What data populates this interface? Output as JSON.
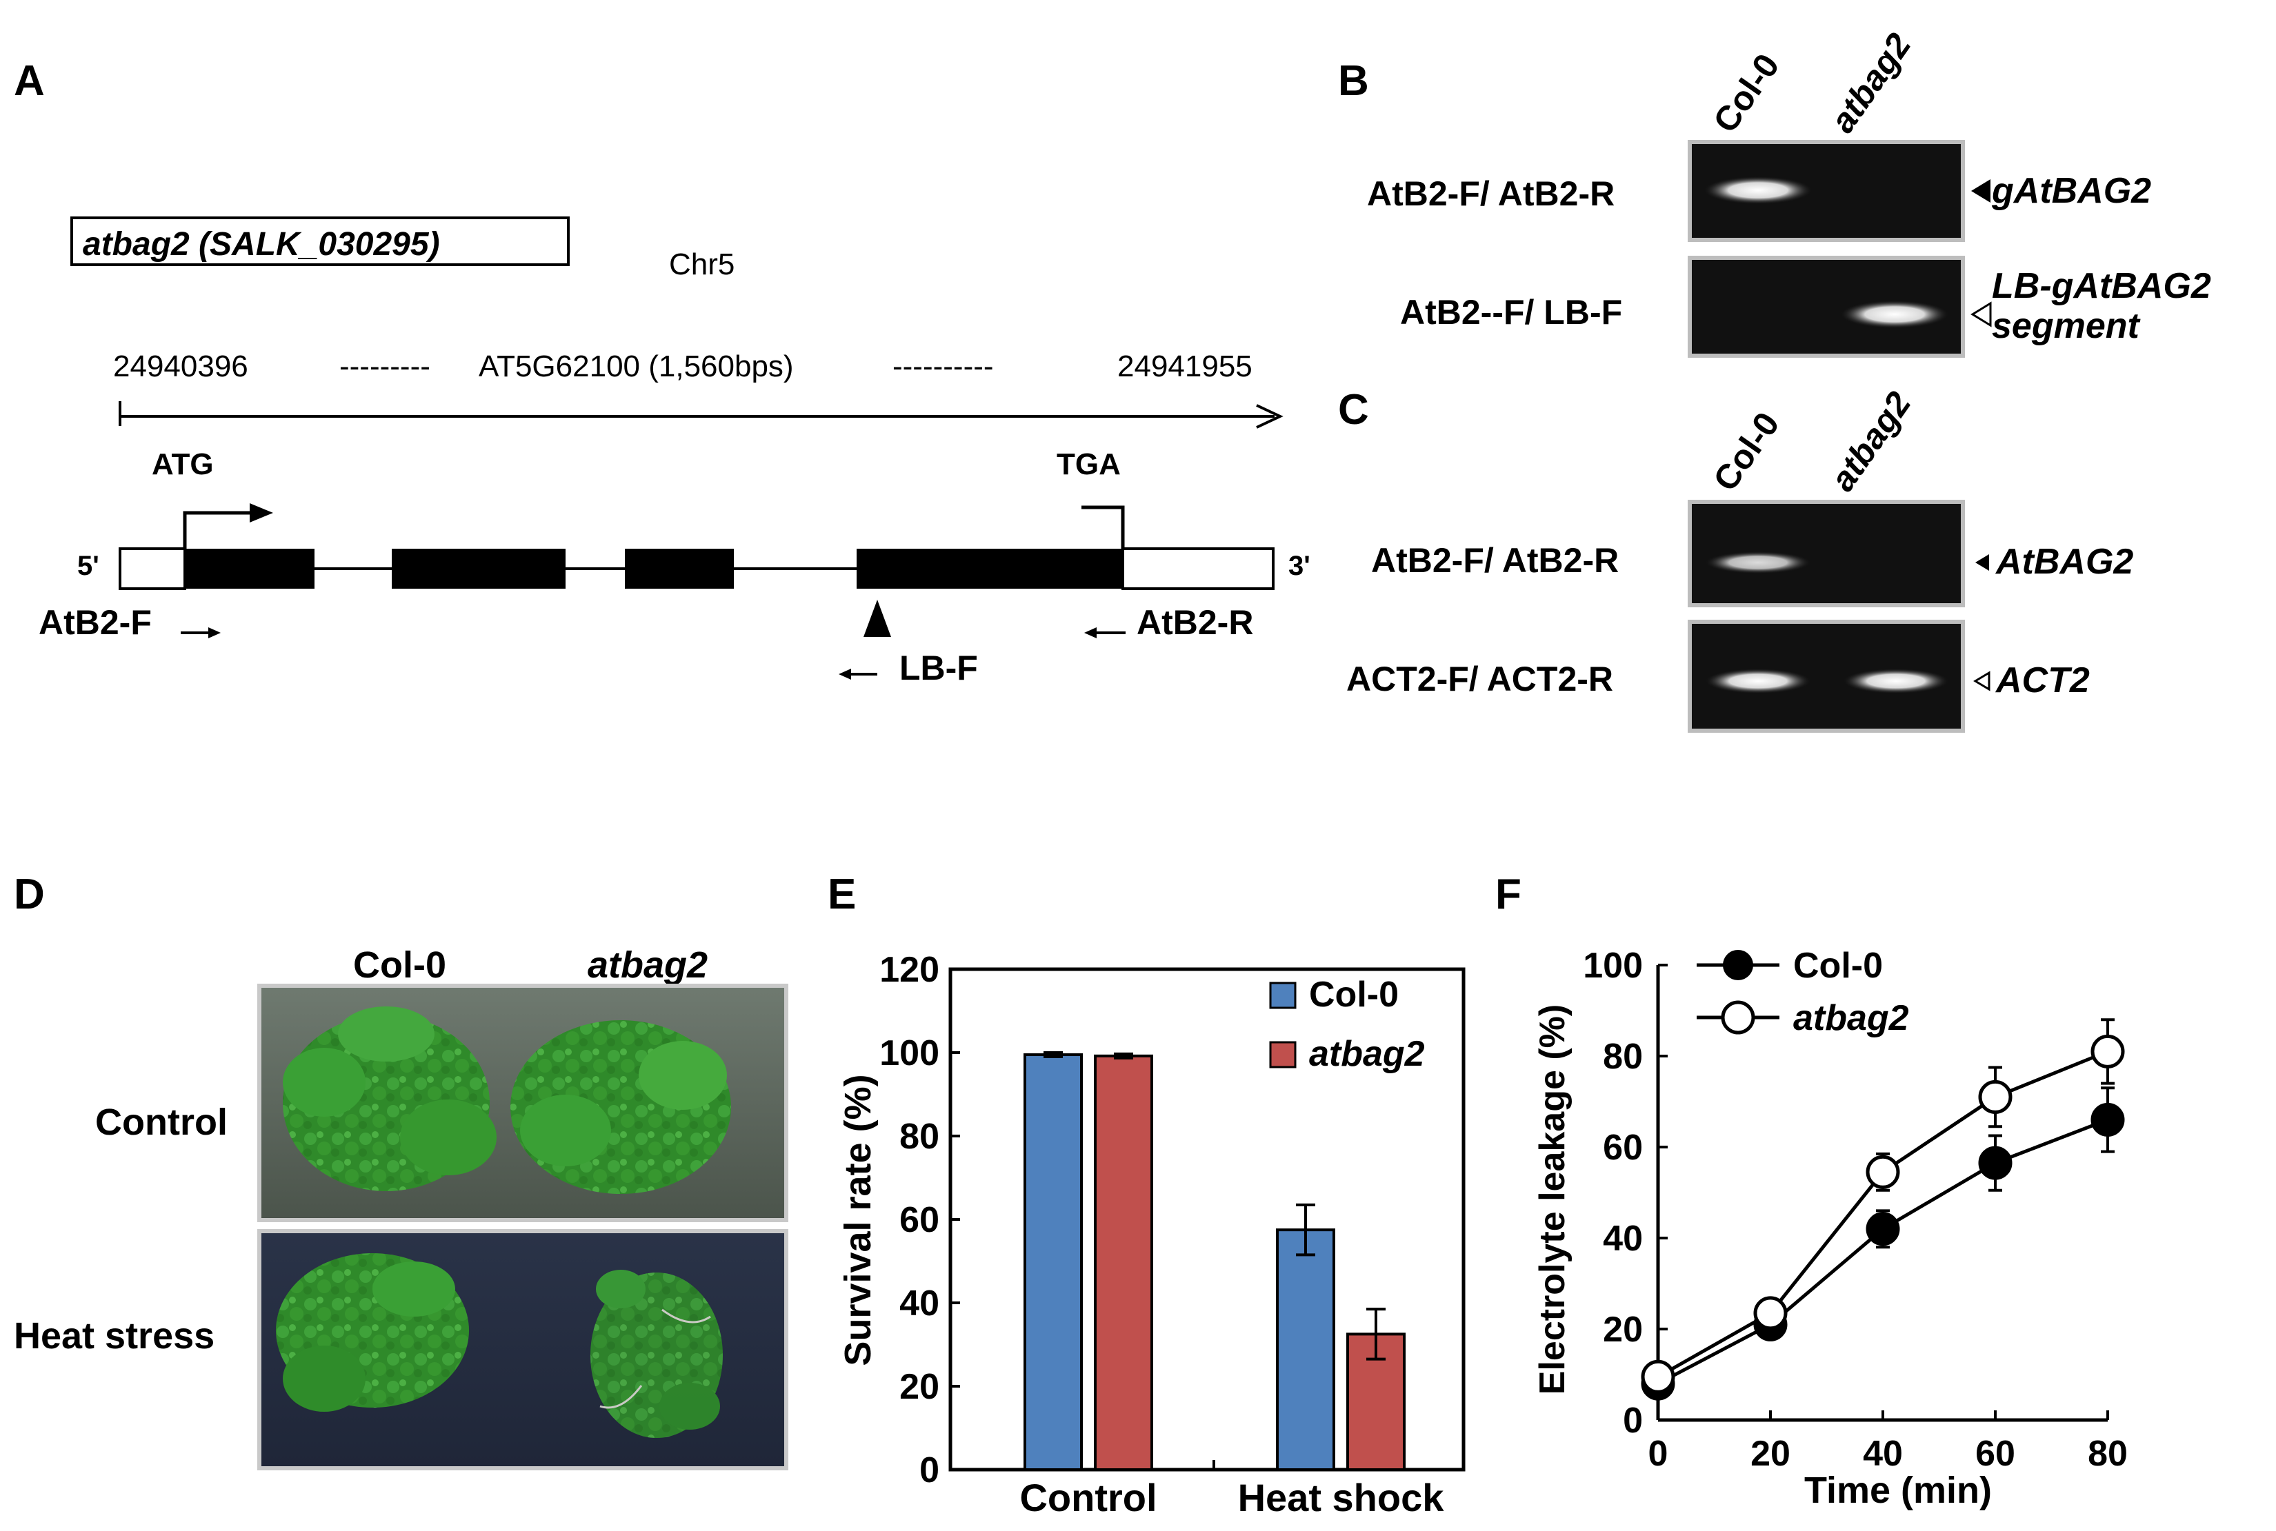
{
  "panels": {
    "A": "A",
    "B": "B",
    "C": "C",
    "D": "D",
    "E": "E",
    "F": "F"
  },
  "panel_a": {
    "mutant_label": "atbag2 (SALK_030295)",
    "chromosome": "Chr5",
    "start_coord": "24940396",
    "dash_left": "---------",
    "gene_label": "AT5G62100 (1,560bps)",
    "dash_right": "----------",
    "end_coord": "24941955",
    "atg": "ATG",
    "tga": "TGA",
    "five_prime": "5'",
    "three_prime": "3'",
    "primer_f": "AtB2-F",
    "primer_r": "AtB2-R",
    "primer_lb": "LB-F"
  },
  "panel_b": {
    "lanes": [
      "Col-0",
      "atbag2"
    ],
    "row1_label": "AtB2-F/ AtB2-R",
    "row1_product": "gAtBAG2",
    "row2_label": "AtB2--F/ LB-F",
    "row2_product_1": "LB-gAtBAG2",
    "row2_product_2": "segment"
  },
  "panel_c": {
    "lanes": [
      "Col-0",
      "atbag2"
    ],
    "row1_label": "AtB2-F/ AtB2-R",
    "row1_product": "AtBAG2",
    "row2_label": "ACT2-F/ ACT2-R",
    "row2_product": "ACT2"
  },
  "panel_d": {
    "col_labels": [
      "Col-0",
      "atbag2"
    ],
    "row_labels": [
      "Control",
      "Heat stress"
    ]
  },
  "chart_data": [
    {
      "panel": "E",
      "type": "bar",
      "categories": [
        "Control",
        "Heat shock"
      ],
      "series": [
        {
          "name": "Col-0",
          "values": [
            99.5,
            57.5
          ],
          "errors": [
            0.5,
            6
          ],
          "color": "#4f81bd"
        },
        {
          "name": "atbag2",
          "values": [
            99.2,
            32.5
          ],
          "errors": [
            0.5,
            6
          ],
          "color": "#c0504d"
        }
      ],
      "ylabel": "Survival rate (%)",
      "ylim": [
        0,
        120
      ],
      "yticks": [
        "0",
        "20",
        "40",
        "60",
        "80",
        "100",
        "120"
      ],
      "legend": "top-right"
    },
    {
      "panel": "F",
      "type": "line",
      "x": [
        0,
        20,
        40,
        60,
        80
      ],
      "xticks": [
        "0",
        "20",
        "40",
        "60",
        "80"
      ],
      "series": [
        {
          "name": "Col-0",
          "values": [
            8,
            21,
            42,
            56.5,
            66
          ],
          "errors": [
            1.5,
            1.5,
            4,
            6,
            7
          ],
          "marker": "filled"
        },
        {
          "name": "atbag2",
          "values": [
            9.5,
            23.5,
            54.5,
            71,
            81
          ],
          "errors": [
            1.5,
            1.5,
            4,
            6.5,
            7
          ],
          "marker": "open"
        }
      ],
      "xlabel": "Time (min)",
      "ylabel": "Electrolyte leakage (%)",
      "xlim": [
        0,
        80
      ],
      "ylim": [
        0,
        100
      ],
      "yticks": [
        "0",
        "20",
        "40",
        "60",
        "80",
        "100"
      ],
      "legend": "top-left"
    }
  ]
}
